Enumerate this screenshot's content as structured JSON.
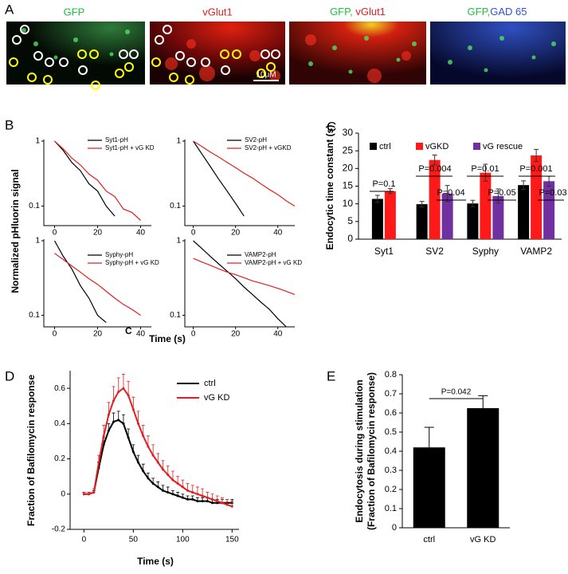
{
  "panel_labels": [
    "A",
    "B",
    "C",
    "D",
    "E"
  ],
  "images": [
    {
      "title": [
        "GFP"
      ]
    },
    {
      "title": [
        "vGlut1"
      ],
      "scale_bar": "10μM"
    },
    {
      "title": [
        "GFP, ",
        "vGlut1"
      ]
    },
    {
      "title": [
        "GFP,",
        "GAD 65"
      ]
    }
  ],
  "chart_data": [
    {
      "type": "line",
      "log_y": true,
      "ylabel": "Normalized pHluorin signal",
      "xlabel": "Time (s)",
      "subplots": [
        {
          "xlim": [
            -5,
            45
          ],
          "ylim": [
            0.05,
            1
          ],
          "xticks": [
            0,
            20,
            40
          ],
          "yticks": [
            1,
            0.1
          ],
          "series": [
            {
              "name": "Syt1-pH",
              "color": "#000000",
              "x": [
                0,
                4,
                8,
                12,
                16,
                20,
                24,
                28
              ],
              "values": [
                1,
                0.72,
                0.47,
                0.35,
                0.22,
                0.17,
                0.1,
                0.07
              ]
            },
            {
              "name": "Syt1-pH + vG KD",
              "color": "#e02020",
              "x": [
                0,
                4,
                8,
                12,
                16,
                20,
                24,
                28,
                32,
                36,
                40
              ],
              "values": [
                1,
                0.76,
                0.55,
                0.43,
                0.31,
                0.25,
                0.17,
                0.14,
                0.09,
                0.08,
                0.06
              ]
            }
          ]
        },
        {
          "xlim": [
            -4,
            48
          ],
          "ylim": [
            0.05,
            1
          ],
          "xticks": [
            0,
            20,
            40
          ],
          "yticks": [
            1,
            0.1
          ],
          "series": [
            {
              "name": "SV2-pH",
              "color": "#000000",
              "x": [
                0,
                4,
                8,
                12,
                16,
                20,
                24
              ],
              "values": [
                1,
                0.64,
                0.41,
                0.26,
                0.17,
                0.11,
                0.07
              ]
            },
            {
              "name": "SV2-pH + vGKD",
              "color": "#e02020",
              "x": [
                0,
                4,
                8,
                12,
                16,
                20,
                24,
                28,
                32,
                36,
                40,
                44,
                48
              ],
              "values": [
                1,
                0.83,
                0.68,
                0.57,
                0.47,
                0.39,
                0.32,
                0.27,
                0.22,
                0.18,
                0.15,
                0.12,
                0.1
              ]
            }
          ]
        },
        {
          "xlim": [
            -5,
            45
          ],
          "ylim": [
            0.07,
            1
          ],
          "xticks": [
            0,
            20,
            40
          ],
          "yticks": [
            1,
            0.1
          ],
          "annotation": "C",
          "series": [
            {
              "name": "Syphy-pH",
              "color": "#000000",
              "x": [
                0,
                4,
                8,
                12,
                16,
                20,
                24
              ],
              "values": [
                1,
                0.62,
                0.42,
                0.25,
                0.17,
                0.1,
                0.08
              ]
            },
            {
              "name": "Syphy-pH + vG KD",
              "color": "#e02020",
              "x": [
                0,
                4,
                8,
                12,
                16,
                20,
                24,
                28,
                32,
                36,
                40
              ],
              "values": [
                0.68,
                0.56,
                0.46,
                0.38,
                0.31,
                0.26,
                0.21,
                0.17,
                0.14,
                0.12,
                0.1
              ]
            }
          ]
        },
        {
          "xlim": [
            -4,
            48
          ],
          "ylim": [
            0.07,
            1
          ],
          "xticks": [
            0,
            20,
            40
          ],
          "yticks": [
            1,
            0.1
          ],
          "series": [
            {
              "name": "VAMP2-pH",
              "color": "#000000",
              "x": [
                0,
                4,
                8,
                12,
                16,
                20,
                24,
                28,
                32,
                36,
                40,
                44
              ],
              "values": [
                1,
                0.79,
                0.62,
                0.49,
                0.39,
                0.31,
                0.24,
                0.19,
                0.15,
                0.12,
                0.09,
                0.07
              ]
            },
            {
              "name": "VAMP2-pH + vG KD",
              "color": "#e02020",
              "x": [
                0,
                4,
                8,
                12,
                16,
                20,
                24,
                28,
                32,
                36,
                40,
                44,
                48
              ],
              "values": [
                0.58,
                0.52,
                0.47,
                0.42,
                0.38,
                0.35,
                0.32,
                0.29,
                0.27,
                0.25,
                0.23,
                0.21,
                0.19
              ]
            }
          ]
        }
      ]
    },
    {
      "type": "bar",
      "ylabel": "Endocytic time constant (s)",
      "categories": [
        "Syt1",
        "SV2",
        "Syphy",
        "VAMP2"
      ],
      "ylim": [
        0,
        30
      ],
      "yticks": [
        0,
        5,
        10,
        15,
        20,
        25,
        30
      ],
      "series": [
        {
          "name": "ctrl",
          "color": "#000000",
          "values": [
            11.4,
            9.9,
            10.1,
            15.3
          ],
          "errors": [
            1.0,
            0.8,
            0.9,
            1.2
          ]
        },
        {
          "name": "vGKD",
          "color": "#ff1a1a",
          "values": [
            13.6,
            22.4,
            18.8,
            23.7
          ],
          "errors": [
            0.7,
            1.4,
            2.4,
            1.7
          ]
        },
        {
          "name": "vG rescue",
          "color": "#7030a0",
          "values": [
            null,
            12.9,
            12.2,
            16.4
          ],
          "errors": [
            null,
            2.3,
            2.0,
            1.4
          ]
        }
      ],
      "annotations": [
        "P=0.1",
        "P=0.004",
        "P=0.04",
        "P=0.01",
        "P=0.05",
        "P=0.001",
        "P=0.03"
      ]
    },
    {
      "type": "line",
      "ylabel": "Fraction of Bafilomycin response",
      "xlabel": "Time (s)",
      "xlim": [
        -14,
        157
      ],
      "ylim": [
        -0.2,
        0.7
      ],
      "xticks": [
        0,
        50,
        100,
        150
      ],
      "yticks": [
        -0.2,
        0,
        0.2,
        0.4,
        0.6
      ],
      "x": [
        0,
        5,
        10,
        15,
        20,
        25,
        30,
        35,
        40,
        45,
        50,
        55,
        60,
        65,
        70,
        75,
        80,
        85,
        90,
        95,
        100,
        105,
        110,
        115,
        120,
        125,
        130,
        135,
        140,
        145,
        150
      ],
      "series": [
        {
          "name": "ctrl",
          "color": "#000000",
          "values": [
            0,
            0,
            0.01,
            0.15,
            0.28,
            0.36,
            0.41,
            0.42,
            0.4,
            0.32,
            0.24,
            0.18,
            0.13,
            0.09,
            0.06,
            0.04,
            0.02,
            0.01,
            0,
            -0.01,
            -0.02,
            -0.03,
            -0.03,
            -0.04,
            -0.04,
            -0.04,
            -0.05,
            -0.05,
            -0.05,
            -0.05,
            -0.05
          ],
          "errors": [
            0.01,
            0.01,
            0.01,
            0.03,
            0.04,
            0.04,
            0.05,
            0.05,
            0.05,
            0.05,
            0.04,
            0.04,
            0.04,
            0.03,
            0.03,
            0.03,
            0.03,
            0.03,
            0.02,
            0.02,
            0.02,
            0.02,
            0.02,
            0.02,
            0.02,
            0.02,
            0.02,
            0.02,
            0.02,
            0.02,
            0.02
          ]
        },
        {
          "name": "vG KD",
          "color": "#e02020",
          "values": [
            0,
            0,
            0.01,
            0.18,
            0.33,
            0.45,
            0.53,
            0.58,
            0.6,
            0.56,
            0.48,
            0.4,
            0.33,
            0.27,
            0.22,
            0.18,
            0.14,
            0.11,
            0.08,
            0.06,
            0.04,
            0.02,
            0.01,
            0,
            -0.01,
            -0.02,
            -0.03,
            -0.04,
            -0.05,
            -0.06,
            -0.07
          ],
          "errors": [
            0.01,
            0.01,
            0.02,
            0.04,
            0.06,
            0.07,
            0.08,
            0.08,
            0.08,
            0.08,
            0.07,
            0.07,
            0.06,
            0.06,
            0.06,
            0.05,
            0.05,
            0.05,
            0.05,
            0.04,
            0.04,
            0.04,
            0.04,
            0.04,
            0.04,
            0.03,
            0.03,
            0.03,
            0.03,
            0.03,
            0.03
          ]
        }
      ]
    },
    {
      "type": "bar",
      "ylabel": [
        "Endocytosis during stimulation",
        "(Fraction of Bafilomycin response)"
      ],
      "categories": [
        "ctrl",
        "vG KD"
      ],
      "values": [
        0.42,
        0.625
      ],
      "errors": [
        0.105,
        0.065
      ],
      "color": "#000000",
      "ylim": [
        0,
        0.8
      ],
      "yticks": [
        0,
        0.1,
        0.2,
        0.3,
        0.4,
        0.5,
        0.6,
        0.7,
        0.8
      ],
      "annotation": "P=0.042"
    }
  ]
}
